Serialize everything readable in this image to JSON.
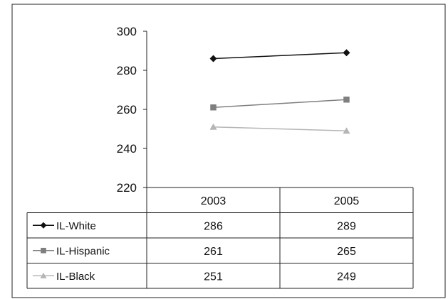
{
  "chart_data": {
    "type": "line",
    "categories": [
      "2003",
      "2005"
    ],
    "series": [
      {
        "name": "IL-White",
        "values": [
          286,
          289
        ],
        "color": "#111111",
        "marker": "diamond"
      },
      {
        "name": "IL-Hispanic",
        "values": [
          261,
          265
        ],
        "color": "#7f7f7f",
        "marker": "square"
      },
      {
        "name": "IL-Black",
        "values": [
          251,
          249
        ],
        "color": "#b5b5b5",
        "marker": "triangle"
      }
    ],
    "ylim": [
      220,
      300
    ],
    "yticks": [
      "220",
      "240",
      "260",
      "280",
      "300"
    ],
    "legend": "data-table-left",
    "grid": false
  }
}
